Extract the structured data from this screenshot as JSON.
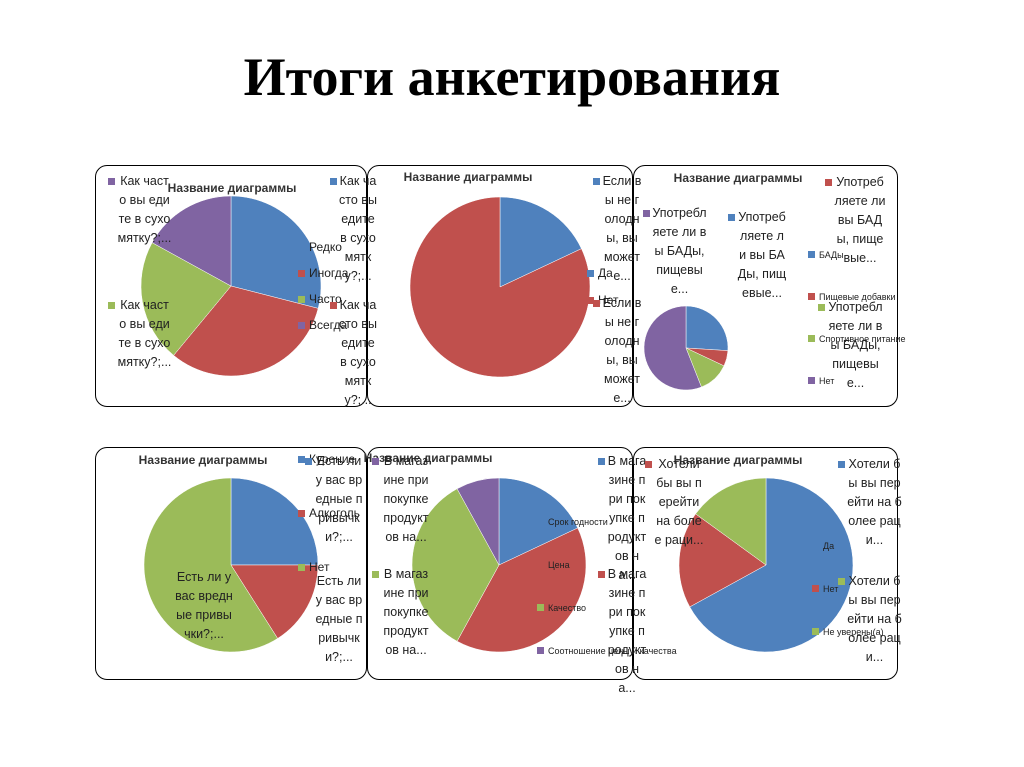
{
  "slide_title": "Итоги анкетирования",
  "chart_data": [
    {
      "type": "pie",
      "title": "Название диаграммы",
      "categories": [
        "Редко",
        "Иногда",
        "Часто",
        "Всегда"
      ],
      "values": [
        29,
        32,
        22,
        17
      ],
      "colors": [
        "#4f81bd",
        "#c0504d",
        "#9bbb59",
        "#8064a2"
      ],
      "labels": [
        "Как часто вы едите в сухомятку?;...",
        "Как часто вы едите в сухомятку?;...",
        "Как часто вы едите в сухомятку?;...",
        "Как часто вы едите в сухомятку?;..."
      ]
    },
    {
      "type": "pie",
      "title": "Название диаграммы",
      "categories": [
        "Да",
        "Нет"
      ],
      "values": [
        18,
        82
      ],
      "colors": [
        "#4f81bd",
        "#c0504d"
      ],
      "labels": [
        "Если вы не голодны, вы можете...",
        "Если вы не голодны, вы можете..."
      ]
    },
    {
      "type": "pie",
      "title": "Название диаграммы",
      "categories": [
        "БАДы",
        "Пищевые добавки",
        "Спортивное питание",
        "Нет"
      ],
      "values": [
        26,
        6,
        12,
        56
      ],
      "colors": [
        "#4f81bd",
        "#c0504d",
        "#9bbb59",
        "#8064a2"
      ],
      "labels": [
        "Употребляете ли вы БАДы, пищевые...",
        "Употребляете ли вы БАДы, пищевые...",
        "Употребляете ли вы БАДы, пищевые...",
        "Употребляете ли вы БАДы, пищевые..."
      ]
    },
    {
      "type": "pie",
      "title": "Название диаграммы",
      "categories": [
        "Курение",
        "Алкоголь",
        "Нет"
      ],
      "values": [
        25,
        16,
        59
      ],
      "colors": [
        "#4f81bd",
        "#c0504d",
        "#9bbb59"
      ],
      "labels": [
        "Есть ли у вас вредные привычки?;...",
        "Есть ли у вас вредные привычки?;...",
        "Есть ли у вас вредные привычки?;..."
      ]
    },
    {
      "type": "pie",
      "title": "Название диаграммы",
      "categories": [
        "Срок годности",
        "Цена",
        "Качество",
        "Соотношение цены и качества"
      ],
      "values": [
        18,
        40,
        34,
        8
      ],
      "colors": [
        "#4f81bd",
        "#c0504d",
        "#9bbb59",
        "#8064a2"
      ],
      "labels": [
        "В магазине при покупке продуктов на...",
        "В магазине при покупке продуктов на...",
        "В магазине при покупке продуктов на...",
        "В магазине при покупке продуктов на..."
      ]
    },
    {
      "type": "pie",
      "title": "Название диаграммы",
      "categories": [
        "Да",
        "Нет",
        "Не уверены(а)"
      ],
      "values": [
        67,
        18,
        15
      ],
      "colors": [
        "#4f81bd",
        "#c0504d",
        "#9bbb59"
      ],
      "labels": [
        "Хотели бы вы перейти на более раци...",
        "Хотели бы вы перейти на более раци...",
        "Хотели бы вы перейти на более раци..."
      ]
    }
  ]
}
